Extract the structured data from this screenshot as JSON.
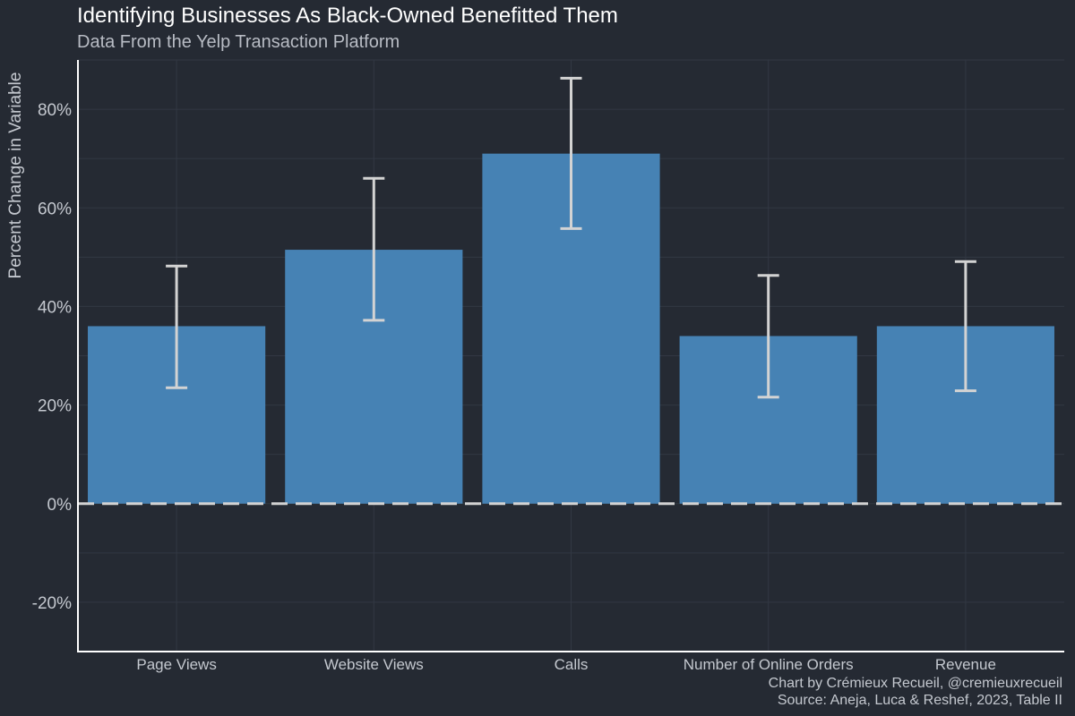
{
  "header": {
    "title": "Identifying Businesses As Black-Owned Benefitted Them",
    "subtitle": "Data From the Yelp Transaction Platform"
  },
  "caption": {
    "line1": "Chart by Crémieux Recueil, @cremieuxrecueil",
    "line2": "Source: Aneja, Luca & Reshef, 2023, Table II"
  },
  "colors": {
    "bar": "#4682b4",
    "errorbar": "#d3d3d3",
    "background": "#252a33",
    "grid": "#323843",
    "axis": "#ffffff"
  },
  "chart_data": {
    "type": "bar",
    "title": "Identifying Businesses As Black-Owned Benefitted Them",
    "subtitle": "Data From the Yelp Transaction Platform",
    "xlabel": "",
    "ylabel": "Percent Change in Variable",
    "ylim": [
      -30,
      90
    ],
    "yticks": [
      -20,
      0,
      20,
      40,
      60,
      80
    ],
    "ytick_labels": [
      "-20%",
      "0%",
      "20%",
      "40%",
      "60%",
      "80%"
    ],
    "categories": [
      "Page Views",
      "Website Views",
      "Calls",
      "Number of Online Orders",
      "Revenue"
    ],
    "values": [
      36,
      51.5,
      71,
      34,
      36
    ],
    "error_low": [
      23.5,
      37.2,
      55.8,
      21.6,
      22.9
    ],
    "error_high": [
      48.2,
      66,
      86.3,
      46.3,
      49.1
    ],
    "reference_line": 0,
    "grid": true,
    "legend": "none"
  }
}
